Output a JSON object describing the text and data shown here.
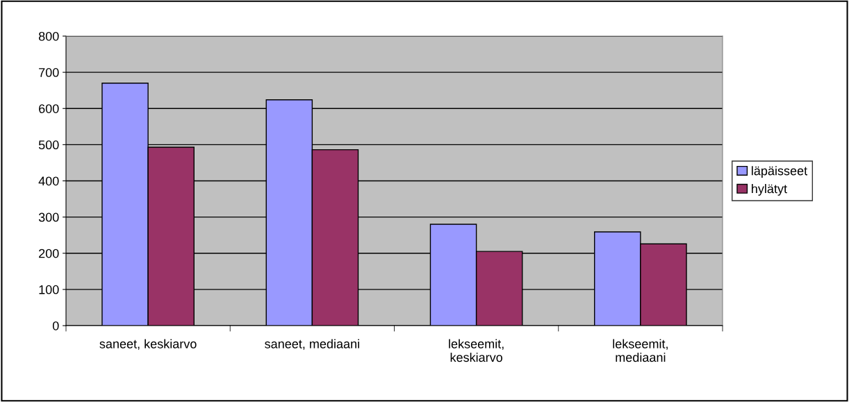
{
  "chart_data": {
    "type": "bar",
    "categories": [
      "saneet, keskiarvo",
      "saneet, mediaani",
      "lekseemit,\nkeskiarvo",
      "lekseemit,\nmediaani"
    ],
    "series": [
      {
        "name": "läpäisseet",
        "color": "#9999ff",
        "values": [
          670,
          624,
          280,
          259
        ]
      },
      {
        "name": "hylätyt",
        "color": "#993366",
        "values": [
          493,
          486,
          205,
          226
        ]
      }
    ],
    "ylim": [
      0,
      800
    ],
    "yticks": [
      0,
      100,
      200,
      300,
      400,
      500,
      600,
      700,
      800
    ],
    "grid": "y",
    "legend": "right"
  }
}
